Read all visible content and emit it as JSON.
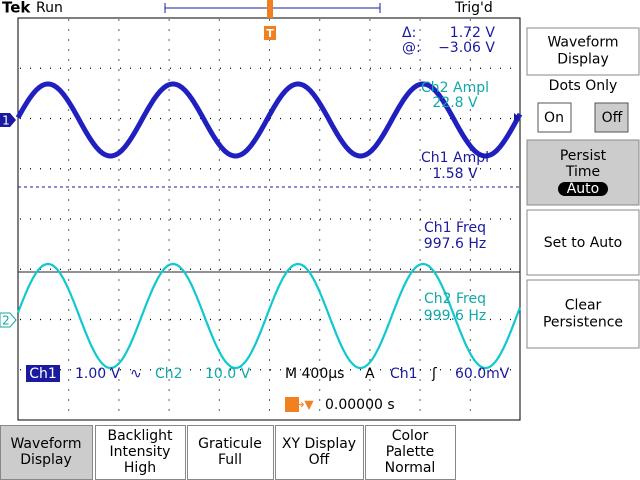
{
  "header": {
    "brand": "Tek",
    "state": "Run",
    "trigger": "Trig'd",
    "trigger_marker": "T"
  },
  "cursors": {
    "delta": "Δ:",
    "delta_value": "1.72 V",
    "at": "@:",
    "at_value": "−3.06 V"
  },
  "measurements": [
    {
      "label": "Ch2 Ampl",
      "value": "22.8 V"
    },
    {
      "label": "Ch1 Ampl",
      "value": "1.58 V"
    },
    {
      "label": "Ch1 Freq",
      "value": "997.6 Hz"
    },
    {
      "label": "Ch2 Freq",
      "value": "999.6 Hz"
    }
  ],
  "channel_markers": [
    "1",
    "2"
  ],
  "status": {
    "ch1": "Ch1",
    "ch1_scale": "1.00 V",
    "ch1_coupling": "∿",
    "ch2": "Ch2",
    "ch2_scale": "10.0 V",
    "timebase": "M 400µs",
    "mode": "A",
    "trig_source": "Ch1",
    "trig_slope": "ʃ",
    "trig_level": "60.0mV",
    "position_marker": "T→▼",
    "position": "0.00000 s"
  },
  "side_menu": {
    "title": [
      "Waveform",
      "Display"
    ],
    "dots_label": "Dots Only",
    "on": "On",
    "off": "Off",
    "persist": [
      "Persist",
      "Time"
    ],
    "persist_value": "Auto",
    "set_auto": "Set to Auto",
    "clear": [
      "Clear",
      "Persistence"
    ]
  },
  "bottom_menu": [
    [
      "Waveform",
      "Display"
    ],
    [
      "Backlight",
      "Intensity",
      "High"
    ],
    [
      "Graticule",
      "Full"
    ],
    [
      "XY Display",
      "Off"
    ],
    [
      "Color",
      "Palette",
      "Normal"
    ]
  ]
}
